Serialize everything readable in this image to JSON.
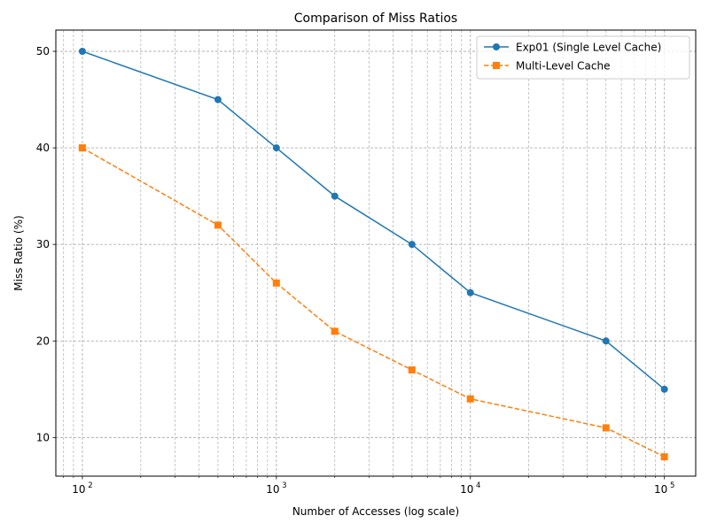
{
  "chart_data": {
    "type": "line",
    "title": "Comparison of Miss Ratios",
    "xlabel": "Number of Accesses (log scale)",
    "ylabel": "Miss Ratio (%)",
    "xscale": "log",
    "xlim": [
      73,
      145000
    ],
    "ylim": [
      6,
      52.2
    ],
    "grid": "both (major and minor), dashed",
    "legend_position": "top-right",
    "x_ticks": [
      {
        "base": "10",
        "exp": "2",
        "value": 100
      },
      {
        "base": "10",
        "exp": "3",
        "value": 1000
      },
      {
        "base": "10",
        "exp": "4",
        "value": 10000
      },
      {
        "base": "10",
        "exp": "5",
        "value": 100000
      }
    ],
    "y_ticks": [
      {
        "value": 10,
        "label": "10"
      },
      {
        "value": 20,
        "label": "20"
      },
      {
        "value": 30,
        "label": "30"
      },
      {
        "value": 40,
        "label": "40"
      },
      {
        "value": 50,
        "label": "50"
      }
    ],
    "x": [
      100,
      500,
      1000,
      2000,
      5000,
      10000,
      50000,
      100000
    ],
    "series": [
      {
        "name": "Exp01 (Single Level Cache)",
        "values": [
          50,
          45,
          40,
          35,
          30,
          25,
          20,
          15
        ],
        "color": "#1f77b4",
        "marker": "circle",
        "linestyle": "solid"
      },
      {
        "name": "Multi-Level Cache",
        "values": [
          40,
          32,
          26,
          21,
          17,
          14,
          11,
          8
        ],
        "color": "#ff7f0e",
        "marker": "square",
        "linestyle": "dashed"
      }
    ]
  }
}
